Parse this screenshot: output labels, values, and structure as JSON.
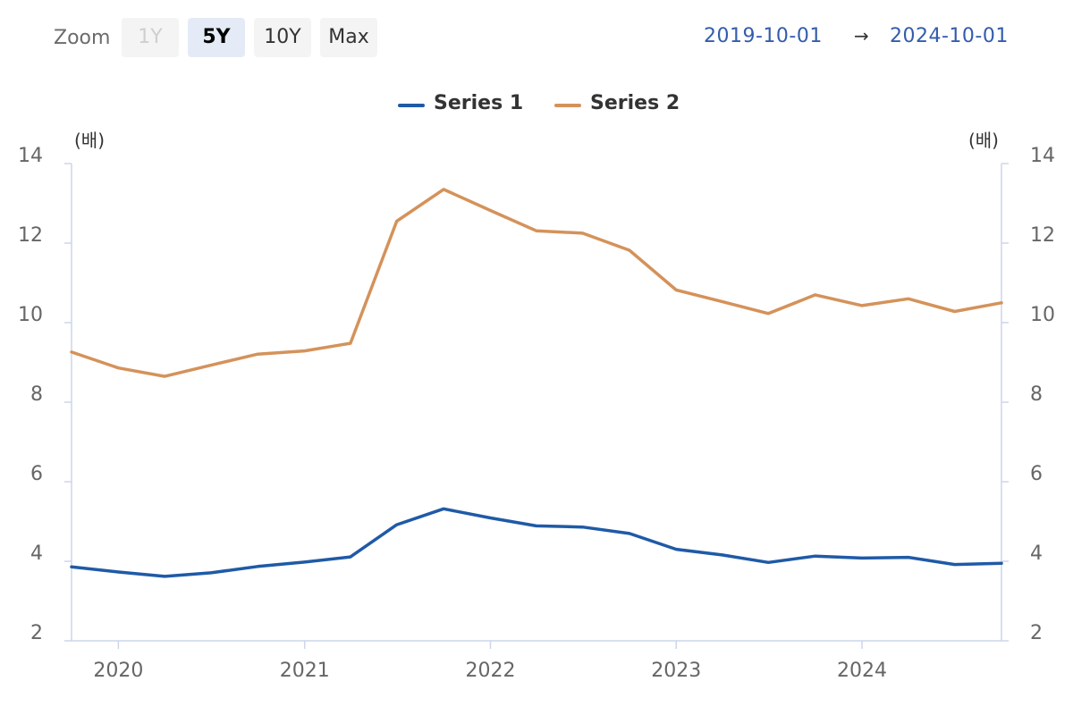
{
  "zoom": {
    "label": "Zoom",
    "buttons": [
      {
        "label": "1Y",
        "state": "disabled"
      },
      {
        "label": "5Y",
        "state": "active"
      },
      {
        "label": "10Y",
        "state": "normal"
      },
      {
        "label": "Max",
        "state": "normal"
      }
    ]
  },
  "range": {
    "from": "2019-10-01",
    "arrow": "→",
    "to": "2024-10-01"
  },
  "colors": {
    "series_1": "#1f5aa6",
    "series_2": "#d4925a",
    "axis": "#ccd6eb",
    "range_text": "#335cad"
  },
  "chart_data": {
    "type": "line",
    "x": [
      "2019-10-01",
      "2020-01-01",
      "2020-04-01",
      "2020-07-01",
      "2020-10-01",
      "2021-01-01",
      "2021-04-01",
      "2021-07-01",
      "2021-10-01",
      "2022-01-01",
      "2022-04-01",
      "2022-07-01",
      "2022-10-01",
      "2023-01-01",
      "2023-04-01",
      "2023-07-01",
      "2023-10-01",
      "2024-01-01",
      "2024-04-01",
      "2024-07-01",
      "2024-10-01"
    ],
    "series": [
      {
        "name": "Series 1",
        "color": "#1f5aa6",
        "values": [
          3.86,
          3.73,
          3.62,
          3.71,
          3.87,
          3.98,
          4.11,
          4.92,
          5.32,
          5.09,
          4.89,
          4.86,
          4.7,
          4.3,
          4.16,
          3.97,
          4.13,
          4.08,
          4.1,
          3.92,
          3.95
        ]
      },
      {
        "name": "Series 2",
        "color": "#d4925a",
        "values": [
          9.26,
          8.86,
          8.65,
          8.93,
          9.21,
          9.29,
          9.48,
          12.55,
          13.35,
          12.82,
          12.31,
          12.25,
          11.82,
          10.82,
          10.53,
          10.23,
          10.7,
          10.43,
          10.6,
          10.28,
          10.5
        ]
      }
    ],
    "y_left": {
      "unit": "(배)",
      "ticks": [
        14,
        12,
        10,
        8,
        6,
        4,
        2
      ],
      "range": [
        2,
        14
      ]
    },
    "y_right": {
      "unit": "(배)",
      "ticks": [
        14,
        12,
        10,
        8,
        6,
        4,
        2
      ],
      "range": [
        2,
        14
      ]
    },
    "x_ticks": [
      {
        "label": "2020",
        "date": "2020-01-01"
      },
      {
        "label": "2021",
        "date": "2021-01-01"
      },
      {
        "label": "2022",
        "date": "2022-01-01"
      },
      {
        "label": "2023",
        "date": "2023-01-01"
      },
      {
        "label": "2024",
        "date": "2024-01-01"
      }
    ],
    "x_range": [
      "2019-10-01",
      "2024-10-01"
    ],
    "legend_position": "top-center",
    "grid": false
  }
}
